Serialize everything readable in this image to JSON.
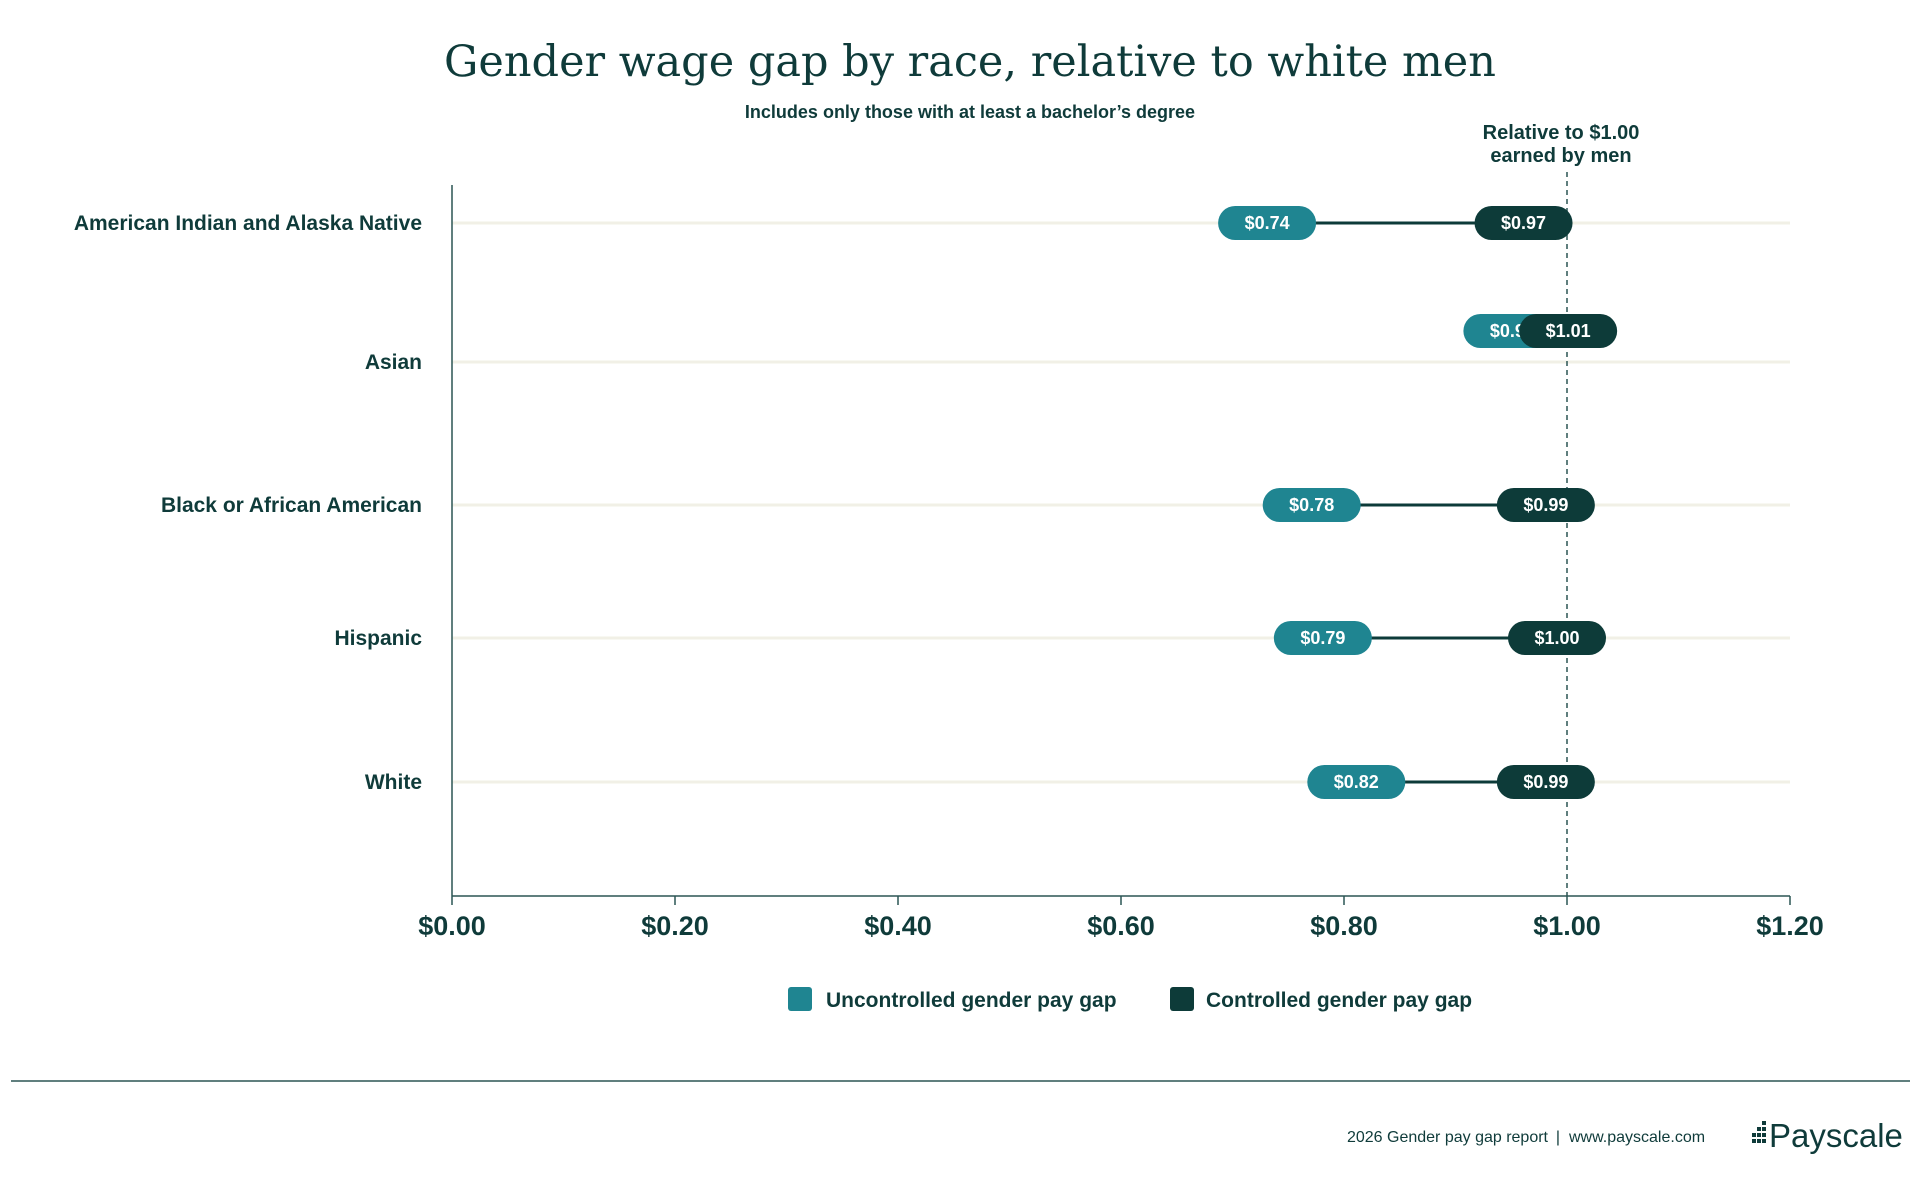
{
  "chart_data": {
    "type": "dumbbell",
    "title": "Gender wage gap by race, relative to white men",
    "subtitle": "Includes only those with at least a bachelor’s degree",
    "categories": [
      "American Indian and Alaska Native",
      "Asian",
      "Black or African American",
      "Hispanic",
      "White"
    ],
    "series": [
      {
        "name": "Uncontrolled gender pay gap",
        "color": "#1f8591",
        "values": [
          0.74,
          0.96,
          0.78,
          0.79,
          0.82
        ],
        "labels": [
          "$0.74",
          "$0.96",
          "$0.78",
          "$0.79",
          "$0.82"
        ]
      },
      {
        "name": "Controlled gender pay gap",
        "color": "#0d3b39",
        "values": [
          0.97,
          1.01,
          0.99,
          1.0,
          0.99
        ],
        "labels": [
          "$0.97",
          "$1.01",
          "$0.99",
          "$1.00",
          "$0.99"
        ]
      }
    ],
    "xlim": [
      0,
      1.2
    ],
    "xticks": [
      0,
      0.2,
      0.4,
      0.6,
      0.8,
      1.0,
      1.2
    ],
    "xtick_labels": [
      "$0.00",
      "$0.20",
      "$0.40",
      "$0.60",
      "$0.80",
      "$1.00",
      "$1.20"
    ],
    "reference_line": {
      "value": 1.0,
      "label_line1": "Relative to $1.00",
      "label_line2": "earned by men"
    },
    "legend_position": "bottom-center"
  },
  "footer": {
    "report": "2026 Gender pay gap report",
    "separator": "|",
    "url": "www.payscale.com",
    "brand": "Payscale"
  },
  "colors": {
    "text": "#0f3b3a",
    "gridline": "#f1f0e6",
    "axis": "#2b5554"
  }
}
